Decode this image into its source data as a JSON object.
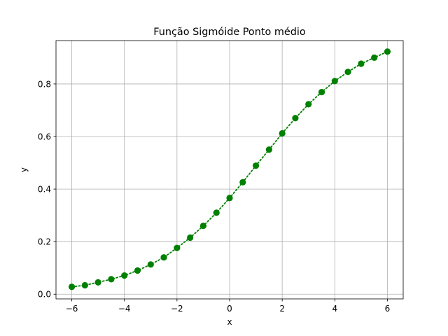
{
  "chart_data": {
    "type": "line",
    "title": "Função Sigmóide Ponto médio",
    "xlabel": "x",
    "ylabel": "y",
    "xlim": [
      -6.6,
      6.6
    ],
    "ylim": [
      -0.018,
      0.965
    ],
    "grid": true,
    "xticks": [
      -6,
      -4,
      -2,
      0,
      2,
      4,
      6
    ],
    "xtick_labels": [
      "−6",
      "−4",
      "−2",
      "0",
      "2",
      "4",
      "6"
    ],
    "yticks": [
      0.0,
      0.2,
      0.4,
      0.6,
      0.8
    ],
    "ytick_labels": [
      "0.0",
      "0.2",
      "0.4",
      "0.6",
      "0.8"
    ],
    "series": [
      {
        "color": "#008000",
        "line_style": "dotted",
        "marker": "circle",
        "x": [
          -6,
          -5.5,
          -5,
          -4.5,
          -4,
          -3.5,
          -3,
          -2.5,
          -2,
          -1.5,
          -1,
          -0.5,
          0,
          0.5,
          1,
          1.5,
          2,
          2.5,
          3,
          3.5,
          4,
          4.5,
          5,
          5.5,
          6
        ],
        "y": [
          0.028,
          0.034,
          0.045,
          0.057,
          0.071,
          0.09,
          0.113,
          0.14,
          0.176,
          0.215,
          0.26,
          0.31,
          0.366,
          0.426,
          0.489,
          0.55,
          0.612,
          0.67,
          0.723,
          0.769,
          0.811,
          0.846,
          0.877,
          0.9,
          0.923
        ]
      }
    ]
  }
}
